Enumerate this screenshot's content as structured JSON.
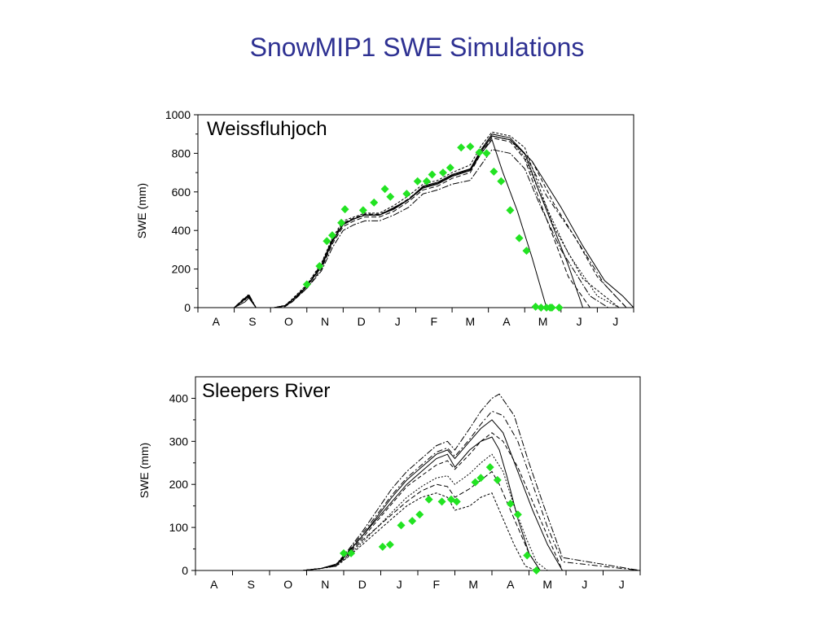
{
  "slide": {
    "title": "SnowMIP1 SWE Simulations"
  },
  "colors": {
    "title": "#2e3192",
    "observed": "#22e322",
    "model": "#000000"
  },
  "chart_data": [
    {
      "type": "line",
      "title": "Weissfluhjoch",
      "ylabel": "SWE (mm)",
      "xlabel": "",
      "month_labels": [
        "A",
        "S",
        "O",
        "N",
        "D",
        "J",
        "F",
        "M",
        "A",
        "M",
        "J",
        "J"
      ],
      "ylim": [
        0,
        1000
      ],
      "yticks": [
        0,
        200,
        400,
        600,
        800,
        1000
      ],
      "xlim": [
        0,
        12
      ],
      "observed": {
        "x": [
          3.0,
          3.35,
          3.55,
          3.7,
          3.95,
          4.05,
          4.55,
          4.85,
          5.15,
          5.3,
          5.75,
          6.05,
          6.3,
          6.45,
          6.75,
          6.95,
          7.25,
          7.5,
          7.75,
          7.95,
          8.15,
          8.35,
          8.6,
          8.85,
          9.05,
          9.3,
          9.45,
          9.6,
          9.7,
          9.75,
          9.95
        ],
        "y": [
          120,
          215,
          345,
          375,
          440,
          510,
          505,
          545,
          615,
          575,
          590,
          655,
          655,
          690,
          700,
          725,
          830,
          835,
          805,
          800,
          705,
          655,
          505,
          360,
          295,
          5,
          0,
          0,
          0,
          0,
          0
        ]
      },
      "models": [
        {
          "x": [
            0,
            1.0,
            1.3,
            1.4,
            1.6,
            2.1,
            2.4,
            2.6,
            3.0,
            3.4,
            3.7,
            4.0,
            4.3,
            4.6,
            5.0,
            5.4,
            5.8,
            6.2,
            6.6,
            7.0,
            7.5,
            7.8,
            8.1,
            8.6,
            9.0,
            9.4,
            10.2,
            10.6,
            11.5,
            12
          ],
          "y": [
            0,
            0,
            50,
            65,
            0,
            0,
            10,
            40,
            110,
            220,
            350,
            430,
            460,
            480,
            480,
            520,
            560,
            630,
            650,
            690,
            720,
            820,
            900,
            880,
            800,
            600,
            220,
            0,
            0,
            0
          ]
        },
        {
          "x": [
            0,
            1.0,
            1.3,
            1.4,
            1.6,
            2.1,
            2.4,
            2.6,
            3.0,
            3.4,
            3.7,
            4.0,
            4.3,
            4.6,
            5.0,
            5.4,
            5.8,
            6.2,
            6.6,
            7.0,
            7.5,
            7.8,
            8.1,
            8.6,
            9.0,
            9.4,
            10.2,
            10.8,
            11.5,
            12
          ],
          "y": [
            0,
            0,
            45,
            55,
            0,
            0,
            5,
            30,
            100,
            200,
            330,
            420,
            450,
            470,
            470,
            500,
            550,
            610,
            630,
            670,
            700,
            800,
            880,
            860,
            770,
            560,
            160,
            0,
            0,
            0
          ]
        },
        {
          "x": [
            0,
            1.0,
            1.3,
            1.4,
            1.6,
            2.1,
            2.4,
            2.6,
            3.0,
            3.4,
            3.7,
            4.0,
            4.3,
            4.6,
            5.0,
            5.4,
            5.8,
            6.2,
            6.6,
            7.0,
            7.5,
            7.8,
            8.1,
            8.6,
            9.0,
            9.8,
            10.6,
            11.2,
            11.6,
            12
          ],
          "y": [
            0,
            0,
            40,
            60,
            0,
            0,
            12,
            45,
            120,
            230,
            360,
            450,
            470,
            490,
            490,
            530,
            580,
            640,
            660,
            700,
            740,
            840,
            910,
            890,
            830,
            420,
            150,
            60,
            0,
            0
          ]
        },
        {
          "x": [
            0,
            1.0,
            1.3,
            1.4,
            1.6,
            2.1,
            2.4,
            2.6,
            3.0,
            3.4,
            3.7,
            4.0,
            4.3,
            4.6,
            5.0,
            5.4,
            5.8,
            6.2,
            6.6,
            7.0,
            7.5,
            7.8,
            8.1,
            8.6,
            9.0,
            9.4,
            10.0,
            10.8,
            11.3,
            12
          ],
          "y": [
            0,
            0,
            50,
            70,
            0,
            0,
            8,
            35,
            100,
            190,
            310,
            400,
            430,
            450,
            450,
            480,
            520,
            590,
            610,
            640,
            660,
            740,
            820,
            800,
            720,
            540,
            300,
            60,
            0,
            0
          ]
        },
        {
          "x": [
            0,
            1.0,
            1.3,
            1.4,
            1.6,
            2.1,
            2.4,
            2.6,
            3.0,
            3.4,
            3.7,
            4.0,
            4.3,
            4.6,
            5.0,
            5.4,
            5.8,
            6.2,
            6.6,
            7.0,
            7.5,
            7.8,
            8.1,
            8.4,
            8.8,
            9.2,
            9.6,
            10.4,
            11.0,
            12
          ],
          "y": [
            0,
            0,
            30,
            50,
            0,
            0,
            10,
            30,
            110,
            210,
            340,
            430,
            460,
            480,
            480,
            510,
            560,
            620,
            640,
            680,
            710,
            800,
            870,
            700,
            500,
            260,
            0,
            0,
            0,
            0
          ]
        },
        {
          "x": [
            0,
            1.0,
            1.3,
            1.4,
            1.6,
            2.1,
            2.4,
            2.6,
            3.0,
            3.4,
            3.7,
            4.0,
            4.3,
            4.6,
            5.0,
            5.4,
            5.8,
            6.2,
            6.6,
            7.0,
            7.5,
            7.8,
            8.1,
            8.6,
            9.2,
            9.8,
            10.4,
            11.0,
            11.8,
            12
          ],
          "y": [
            0,
            0,
            55,
            60,
            0,
            0,
            10,
            40,
            115,
            225,
            355,
            440,
            465,
            485,
            485,
            515,
            565,
            625,
            645,
            685,
            715,
            815,
            890,
            870,
            760,
            540,
            360,
            160,
            0,
            0
          ]
        },
        {
          "x": [
            0,
            1.0,
            1.3,
            1.4,
            1.6,
            2.1,
            2.4,
            2.6,
            3.0,
            3.4,
            3.7,
            4.0,
            4.3,
            4.6,
            5.0,
            5.4,
            5.8,
            6.2,
            6.6,
            7.0,
            7.5,
            7.8,
            8.1,
            8.6,
            9.0,
            9.4,
            10.2,
            11.0,
            11.6,
            12
          ],
          "y": [
            0,
            0,
            45,
            60,
            0,
            0,
            10,
            40,
            110,
            215,
            345,
            435,
            460,
            480,
            480,
            515,
            560,
            625,
            645,
            685,
            715,
            810,
            890,
            870,
            780,
            600,
            280,
            60,
            0,
            0
          ]
        },
        {
          "x": [
            0,
            1.0,
            1.3,
            1.4,
            1.6,
            2.1,
            2.4,
            2.6,
            3.0,
            3.4,
            3.7,
            4.0,
            4.3,
            4.6,
            5.0,
            5.4,
            5.8,
            6.2,
            6.6,
            7.0,
            7.5,
            7.8,
            8.1,
            8.6,
            9.0,
            9.6,
            10.4,
            11.2,
            11.8,
            12
          ],
          "y": [
            0,
            0,
            45,
            60,
            0,
            0,
            10,
            40,
            110,
            215,
            345,
            435,
            460,
            480,
            480,
            515,
            560,
            625,
            645,
            685,
            715,
            810,
            890,
            870,
            800,
            580,
            360,
            120,
            0,
            0
          ]
        },
        {
          "x": [
            0,
            1.0,
            1.3,
            1.4,
            1.6,
            2.1,
            2.4,
            2.6,
            3.0,
            3.4,
            3.7,
            4.0,
            4.3,
            4.6,
            5.0,
            5.4,
            5.8,
            6.2,
            6.6,
            7.0,
            7.5,
            7.8,
            8.1,
            8.6,
            9.2,
            10.0,
            10.6,
            11.2,
            11.7,
            12
          ],
          "y": [
            0,
            0,
            45,
            60,
            0,
            0,
            10,
            40,
            110,
            215,
            345,
            435,
            460,
            480,
            480,
            515,
            560,
            625,
            645,
            685,
            715,
            810,
            890,
            870,
            760,
            520,
            320,
            140,
            60,
            0
          ]
        }
      ]
    },
    {
      "type": "line",
      "title": "Sleepers River",
      "ylabel": "SWE (mm)",
      "xlabel": "",
      "month_labels": [
        "A",
        "S",
        "O",
        "N",
        "D",
        "J",
        "F",
        "M",
        "A",
        "M",
        "J",
        "J"
      ],
      "ylim": [
        0,
        450
      ],
      "yticks": [
        0,
        100,
        200,
        300,
        400
      ],
      "xlim": [
        0,
        12
      ],
      "observed": {
        "x": [
          4.0,
          4.2,
          5.05,
          5.25,
          5.55,
          5.85,
          6.05,
          6.3,
          6.65,
          6.9,
          7.05,
          7.55,
          7.7,
          7.95,
          8.15,
          8.5,
          8.7,
          8.95,
          9.2
        ],
        "y": [
          40,
          40,
          55,
          60,
          105,
          115,
          130,
          165,
          160,
          165,
          160,
          205,
          215,
          240,
          210,
          155,
          130,
          35,
          0
        ]
      },
      "models": [
        {
          "x": [
            0,
            2.9,
            3.4,
            3.8,
            4.1,
            4.5,
            4.9,
            5.3,
            5.7,
            6.1,
            6.5,
            6.8,
            7.0,
            7.4,
            7.7,
            8.0,
            8.2,
            8.4,
            8.7,
            9.0,
            9.3,
            9.6,
            12
          ],
          "y": [
            0,
            0,
            5,
            15,
            40,
            80,
            120,
            160,
            200,
            230,
            260,
            270,
            240,
            280,
            300,
            310,
            280,
            220,
            120,
            40,
            0,
            0,
            0
          ]
        },
        {
          "x": [
            0,
            2.9,
            3.4,
            3.8,
            4.1,
            4.5,
            4.9,
            5.3,
            5.7,
            6.1,
            6.5,
            6.8,
            7.0,
            7.4,
            7.7,
            8.0,
            8.2,
            8.6,
            9.0,
            9.3,
            9.6,
            12
          ],
          "y": [
            0,
            0,
            5,
            12,
            35,
            70,
            100,
            130,
            160,
            185,
            200,
            195,
            170,
            190,
            210,
            230,
            200,
            120,
            40,
            0,
            0,
            0
          ]
        },
        {
          "x": [
            0,
            2.9,
            3.4,
            3.8,
            4.1,
            4.5,
            4.9,
            5.3,
            5.7,
            6.1,
            6.5,
            6.8,
            7.0,
            7.4,
            7.7,
            8.0,
            8.2,
            8.6,
            8.9,
            9.2,
            9.6,
            12
          ],
          "y": [
            0,
            0,
            5,
            10,
            30,
            60,
            90,
            120,
            150,
            170,
            180,
            170,
            140,
            150,
            170,
            180,
            140,
            60,
            10,
            0,
            0,
            0
          ]
        },
        {
          "x": [
            0,
            2.9,
            3.4,
            3.8,
            4.1,
            4.5,
            4.9,
            5.3,
            5.7,
            6.1,
            6.5,
            6.8,
            7.0,
            7.4,
            7.7,
            8.0,
            8.2,
            8.6,
            9.0,
            9.4,
            9.9,
            12
          ],
          "y": [
            0,
            0,
            5,
            15,
            45,
            90,
            140,
            190,
            230,
            260,
            290,
            300,
            280,
            330,
            370,
            400,
            410,
            360,
            250,
            150,
            30,
            0
          ]
        },
        {
          "x": [
            0,
            2.9,
            3.4,
            3.8,
            4.1,
            4.5,
            4.9,
            5.3,
            5.7,
            6.1,
            6.5,
            6.8,
            7.0,
            7.4,
            7.7,
            8.0,
            8.3,
            8.7,
            9.1,
            9.5,
            9.9,
            12
          ],
          "y": [
            0,
            0,
            5,
            12,
            40,
            80,
            125,
            170,
            210,
            240,
            270,
            280,
            260,
            300,
            330,
            350,
            320,
            230,
            140,
            60,
            0,
            0
          ]
        },
        {
          "x": [
            0,
            2.9,
            3.4,
            3.8,
            4.1,
            4.5,
            4.9,
            5.3,
            5.7,
            6.1,
            6.5,
            6.8,
            7.0,
            7.4,
            7.7,
            8.0,
            8.3,
            8.7,
            9.1,
            9.5,
            9.9,
            12
          ],
          "y": [
            0,
            0,
            5,
            12,
            38,
            75,
            115,
            155,
            195,
            220,
            245,
            255,
            235,
            270,
            300,
            320,
            300,
            240,
            160,
            80,
            0,
            0
          ]
        },
        {
          "x": [
            0,
            2.9,
            3.4,
            3.8,
            4.1,
            4.5,
            4.9,
            5.3,
            5.7,
            6.1,
            6.5,
            6.8,
            7.0,
            7.4,
            7.7,
            8.0,
            8.3,
            8.6,
            8.9,
            9.2,
            9.5,
            12
          ],
          "y": [
            0,
            0,
            5,
            10,
            32,
            65,
            100,
            135,
            170,
            195,
            215,
            220,
            200,
            225,
            250,
            270,
            230,
            150,
            80,
            20,
            0,
            0
          ]
        },
        {
          "x": [
            0,
            2.9,
            3.4,
            3.8,
            4.1,
            4.5,
            4.9,
            5.3,
            5.7,
            6.1,
            6.5,
            6.8,
            7.0,
            7.4,
            7.7,
            8.0,
            8.3,
            8.7,
            9.1,
            9.5,
            9.9,
            12
          ],
          "y": [
            0,
            0,
            5,
            14,
            42,
            85,
            130,
            175,
            215,
            245,
            275,
            285,
            265,
            305,
            340,
            370,
            360,
            300,
            200,
            100,
            20,
            0
          ]
        }
      ]
    }
  ]
}
